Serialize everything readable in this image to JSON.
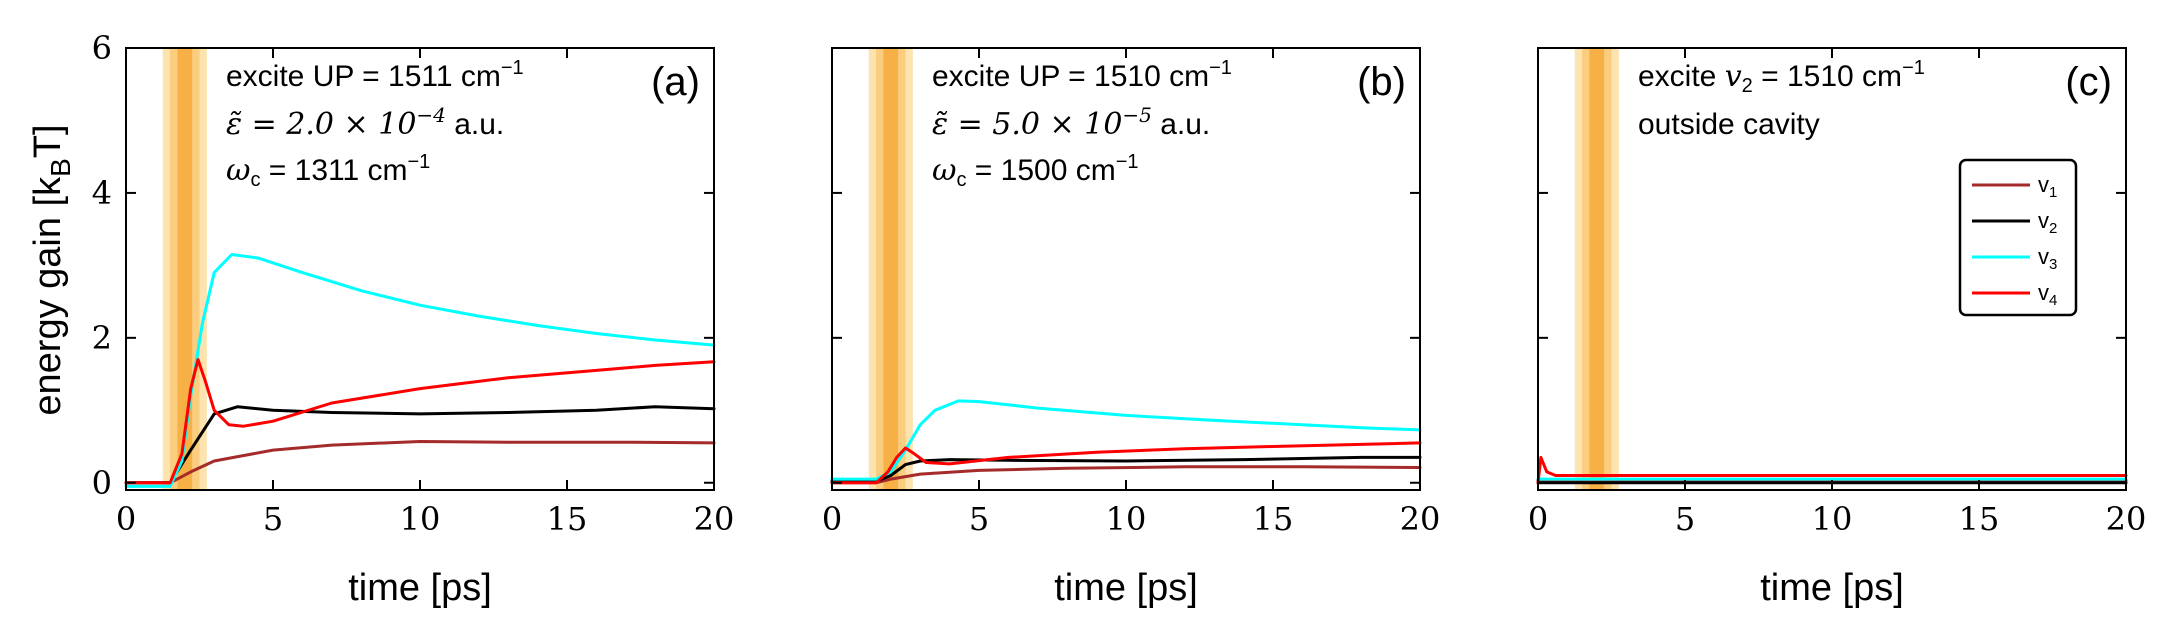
{
  "chart_data": [
    {
      "type": "line",
      "panel_label": "(a)",
      "xlabel": "time [ps]",
      "ylabel": "energy gain [k",
      "ylabel_sub": "B",
      "ylabel_tail": "T]",
      "xlim": [
        0,
        20
      ],
      "ylim": [
        -0.1,
        6
      ],
      "xticks": [
        "0",
        "5",
        "10",
        "15",
        "20"
      ],
      "yticks": [
        "0",
        "2",
        "4",
        "6"
      ],
      "shaded_bands": [
        [
          1.25,
          2.75
        ],
        [
          1.5,
          2.5
        ],
        [
          1.75,
          2.25
        ]
      ],
      "annotations": {
        "line1": "excite UP = 1511 cm",
        "line1_sup": "−1",
        "line2_sym": "ε̃ = 2.0 × 10",
        "line2_sup": "−4",
        "line2_unit": " a.u.",
        "line3_sym": "ω",
        "line3_sub": "c",
        "line3_rest": " = 1311 cm",
        "line3_sup": "−1"
      },
      "series": [
        {
          "name": "v1",
          "color": "#a52a2a",
          "x": [
            0,
            1.5,
            2.2,
            3,
            5,
            7,
            10,
            13,
            17,
            20
          ],
          "y": [
            0,
            0,
            0.15,
            0.3,
            0.45,
            0.52,
            0.57,
            0.56,
            0.56,
            0.55
          ]
        },
        {
          "name": "v2",
          "color": "#000000",
          "x": [
            0,
            1.5,
            2.2,
            3,
            3.8,
            5,
            7,
            10,
            13,
            16,
            18,
            20
          ],
          "y": [
            0,
            0,
            0.45,
            0.95,
            1.05,
            1.0,
            0.97,
            0.95,
            0.97,
            1.0,
            1.05,
            1.02
          ]
        },
        {
          "name": "v3",
          "color": "#00ffff",
          "x": [
            0,
            1.5,
            1.9,
            2.2,
            2.6,
            3,
            3.6,
            4.5,
            6,
            8,
            10,
            12,
            14,
            16,
            18,
            20
          ],
          "y": [
            -0.05,
            -0.05,
            0.3,
            1.2,
            2.2,
            2.9,
            3.15,
            3.1,
            2.9,
            2.65,
            2.45,
            2.3,
            2.17,
            2.06,
            1.97,
            1.9
          ]
        },
        {
          "name": "v4",
          "color": "#ff0000",
          "x": [
            0,
            1.5,
            1.9,
            2.2,
            2.45,
            2.7,
            3,
            3.5,
            4,
            5,
            7,
            10,
            13,
            16,
            18,
            20
          ],
          "y": [
            0,
            0,
            0.4,
            1.3,
            1.7,
            1.4,
            1.0,
            0.8,
            0.78,
            0.85,
            1.1,
            1.3,
            1.45,
            1.55,
            1.62,
            1.67
          ]
        }
      ]
    },
    {
      "type": "line",
      "panel_label": "(b)",
      "xlabel": "time [ps]",
      "xlim": [
        0,
        20
      ],
      "ylim": [
        -0.1,
        6
      ],
      "xticks": [
        "0",
        "5",
        "10",
        "15",
        "20"
      ],
      "shaded_bands": [
        [
          1.25,
          2.75
        ],
        [
          1.5,
          2.5
        ],
        [
          1.75,
          2.25
        ]
      ],
      "annotations": {
        "line1": "excite UP = 1510 cm",
        "line1_sup": "−1",
        "line2_sym": "ε̃ = 5.0 × 10",
        "line2_sup": "−5",
        "line2_unit": " a.u.",
        "line3_sym": "ω",
        "line3_sub": "c",
        "line3_rest": " = 1500 cm",
        "line3_sup": "−1"
      },
      "series": [
        {
          "name": "v1",
          "color": "#a52a2a",
          "x": [
            0,
            1.5,
            2,
            3,
            5,
            8,
            12,
            16,
            20
          ],
          "y": [
            0,
            0,
            0.05,
            0.12,
            0.17,
            0.2,
            0.22,
            0.22,
            0.21
          ]
        },
        {
          "name": "v2",
          "color": "#000000",
          "x": [
            0,
            1.5,
            2,
            2.5,
            3,
            4,
            6,
            10,
            14,
            18,
            20
          ],
          "y": [
            0.02,
            0.02,
            0.1,
            0.25,
            0.3,
            0.32,
            0.31,
            0.3,
            0.32,
            0.35,
            0.35
          ]
        },
        {
          "name": "v3",
          "color": "#00ffff",
          "x": [
            0,
            1.5,
            2,
            2.5,
            3,
            3.5,
            4.3,
            5,
            7,
            10,
            13,
            16,
            18,
            20
          ],
          "y": [
            0.05,
            0.05,
            0.15,
            0.45,
            0.8,
            1.0,
            1.13,
            1.12,
            1.03,
            0.93,
            0.86,
            0.8,
            0.76,
            0.73
          ]
        },
        {
          "name": "v4",
          "color": "#ff0000",
          "x": [
            0,
            1.5,
            1.9,
            2.2,
            2.5,
            2.8,
            3.2,
            4,
            6,
            9,
            12,
            15,
            18,
            20
          ],
          "y": [
            0,
            0,
            0.15,
            0.35,
            0.48,
            0.4,
            0.28,
            0.26,
            0.35,
            0.42,
            0.47,
            0.5,
            0.53,
            0.55
          ]
        }
      ]
    },
    {
      "type": "line",
      "panel_label": "(c)",
      "xlabel": "time [ps]",
      "xlim": [
        0,
        20
      ],
      "ylim": [
        -0.1,
        6
      ],
      "xticks": [
        "0",
        "5",
        "10",
        "15",
        "20"
      ],
      "shaded_bands": [
        [
          1.25,
          2.75
        ],
        [
          1.5,
          2.5
        ],
        [
          1.75,
          2.25
        ]
      ],
      "annotations": {
        "line1_pre": "excite ",
        "line1_sym": "v",
        "line1_sub": "2",
        "line1_rest": " = 1510 cm",
        "line1_sup": "−1",
        "line2": "outside cavity"
      },
      "legend": [
        {
          "label": "v",
          "sub": "1",
          "color": "#a52a2a"
        },
        {
          "label": "v",
          "sub": "2",
          "color": "#000000"
        },
        {
          "label": "v",
          "sub": "3",
          "color": "#00ffff"
        },
        {
          "label": "v",
          "sub": "4",
          "color": "#ff0000"
        }
      ],
      "series": [
        {
          "name": "v1",
          "color": "#a52a2a",
          "x": [
            0,
            1,
            5,
            10,
            15,
            20
          ],
          "y": [
            0.02,
            0.02,
            0.02,
            0.03,
            0.03,
            0.03
          ]
        },
        {
          "name": "v2",
          "color": "#000000",
          "x": [
            0,
            1,
            5,
            10,
            15,
            20
          ],
          "y": [
            0.0,
            0.0,
            0.0,
            0.0,
            0.0,
            0.0
          ]
        },
        {
          "name": "v3",
          "color": "#00ffff",
          "x": [
            0,
            1,
            5,
            10,
            15,
            20
          ],
          "y": [
            0.05,
            0.05,
            0.05,
            0.05,
            0.05,
            0.05
          ]
        },
        {
          "name": "v4",
          "color": "#ff0000",
          "x": [
            0,
            0.1,
            0.3,
            0.6,
            1,
            2,
            5,
            8,
            12,
            16,
            20
          ],
          "y": [
            0.0,
            0.35,
            0.15,
            0.1,
            0.1,
            0.1,
            0.1,
            0.1,
            0.1,
            0.1,
            0.1
          ]
        }
      ]
    }
  ]
}
